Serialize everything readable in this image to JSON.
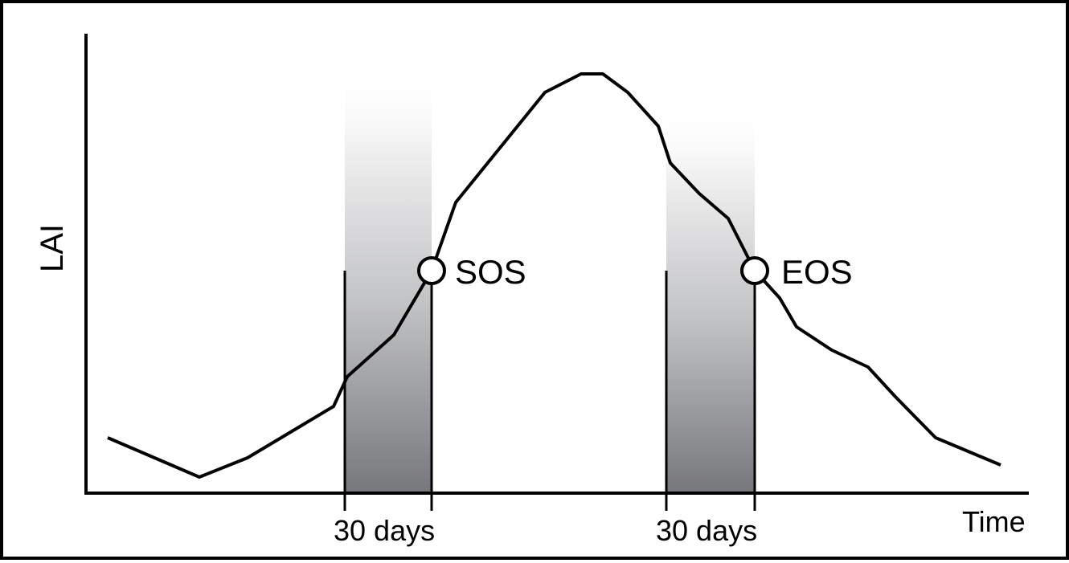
{
  "axes": {
    "y_label": "LAI",
    "x_label": "Time"
  },
  "markers": {
    "sos_label": "SOS",
    "eos_label": "EOS"
  },
  "windows": {
    "left_label": "30 days",
    "right_label": "30 days"
  },
  "colors": {
    "line": "#000000",
    "shade_dark": "#76777b",
    "shade_light": "#ffffff",
    "background": "#ffffff"
  }
}
